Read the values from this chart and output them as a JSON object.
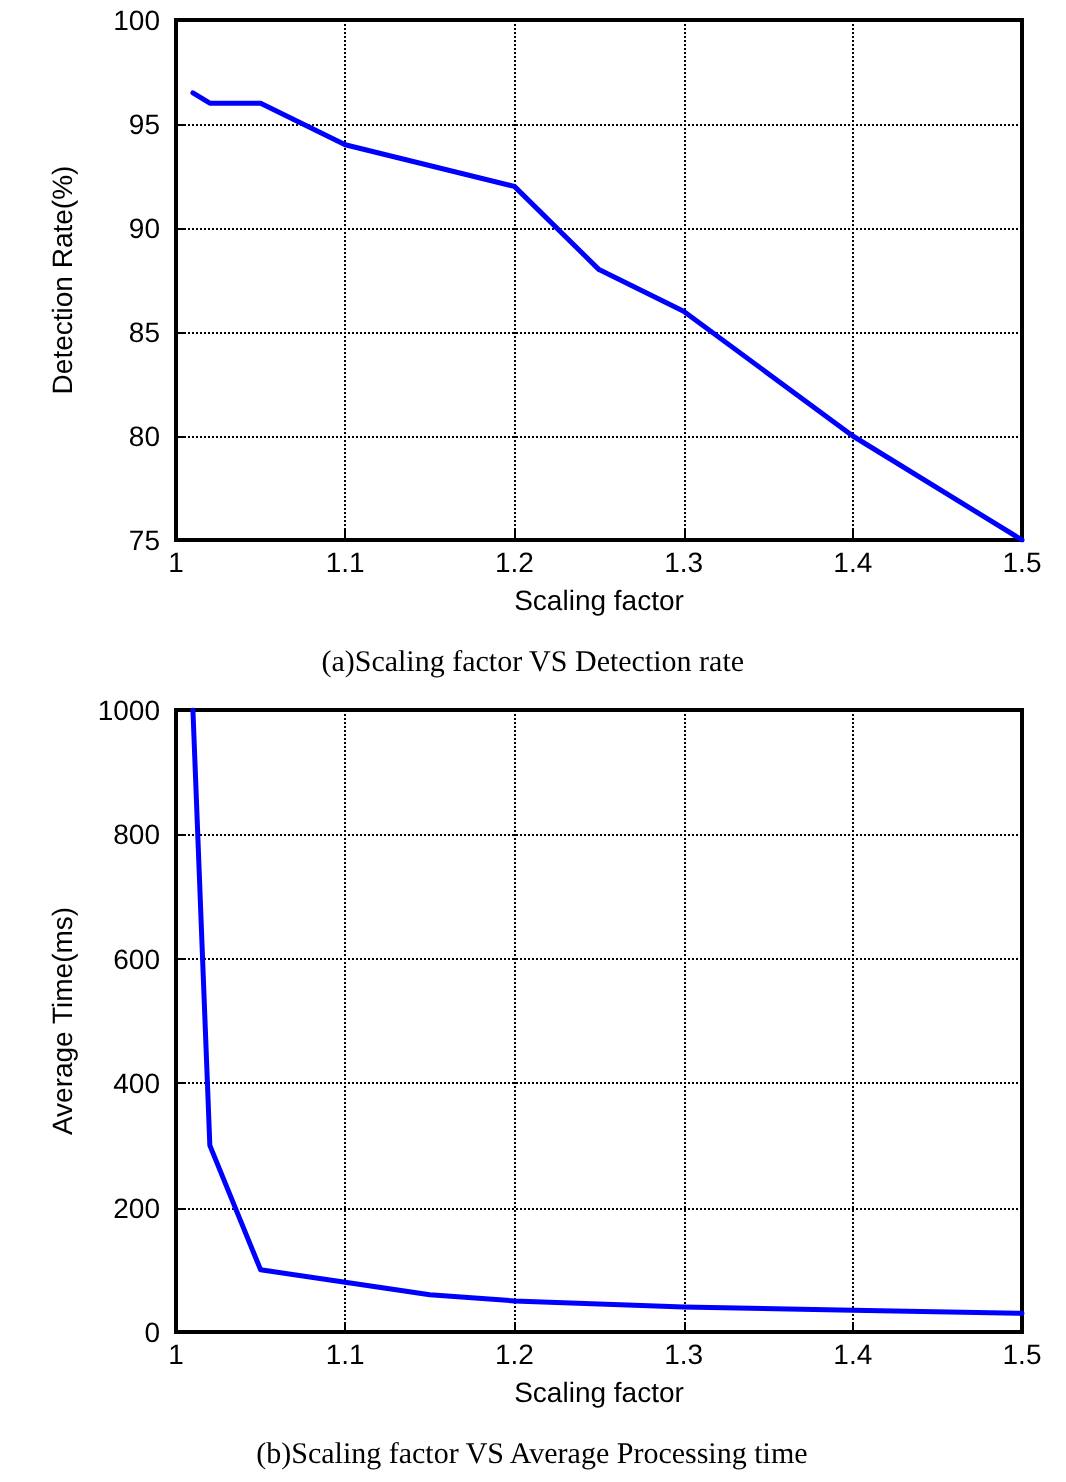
{
  "chart_data": [
    {
      "type": "line",
      "xlabel": "Scaling factor",
      "ylabel": "Detection Rate(%)",
      "x": [
        1.01,
        1.02,
        1.05,
        1.1,
        1.2,
        1.25,
        1.3,
        1.4,
        1.5
      ],
      "series": [
        {
          "color": "#0000ff",
          "values": [
            96.5,
            96,
            96,
            94,
            92,
            88,
            86,
            80,
            75
          ]
        }
      ],
      "xlim": [
        1,
        1.5
      ],
      "xticks": [
        1,
        1.1,
        1.2,
        1.3,
        1.4,
        1.5
      ],
      "ylim": [
        75,
        100
      ],
      "yticks": [
        75,
        80,
        85,
        90,
        95,
        100
      ],
      "grid": true,
      "marker": "none",
      "line_style": "solid",
      "annotations": [
        "(a)Scaling factor VS Detection rate"
      ]
    },
    {
      "type": "line",
      "xlabel": "Scaling factor",
      "ylabel": "Average Time(ms)",
      "x": [
        1.01,
        1.02,
        1.05,
        1.1,
        1.15,
        1.2,
        1.3,
        1.4,
        1.5
      ],
      "series": [
        {
          "color": "#0000ff",
          "values": [
            1000,
            300,
            100,
            80,
            60,
            50,
            40,
            35,
            30
          ]
        }
      ],
      "xlim": [
        1,
        1.5
      ],
      "xticks": [
        1,
        1.1,
        1.2,
        1.3,
        1.4,
        1.5
      ],
      "ylim": [
        0,
        1000
      ],
      "yticks": [
        0,
        200,
        400,
        600,
        800,
        1000
      ],
      "grid": true,
      "marker": "none",
      "line_style": "solid",
      "annotations": [
        "(b)Scaling factor VS Average Processing time"
      ]
    }
  ]
}
